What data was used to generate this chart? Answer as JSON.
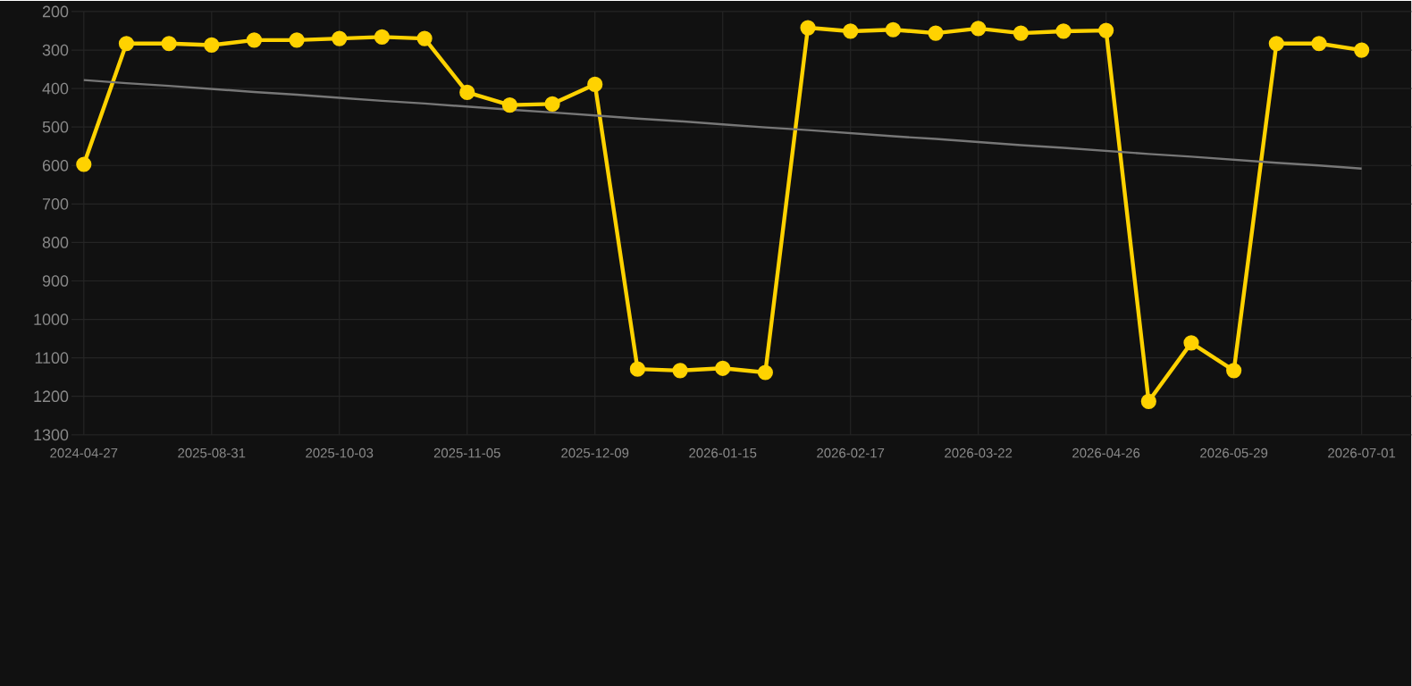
{
  "chart_data": {
    "type": "line",
    "categories": [
      "2024-04-27",
      null,
      null,
      "2025-08-31",
      null,
      null,
      "2025-10-03",
      null,
      null,
      "2025-11-05",
      null,
      null,
      "2025-12-09",
      null,
      null,
      "2026-01-15",
      null,
      null,
      "2026-02-17",
      null,
      null,
      "2026-03-22",
      null,
      null,
      "2026-04-26",
      null,
      null,
      "2026-05-29",
      null,
      null,
      "2026-07-01"
    ],
    "series": [
      {
        "color": "#ffd200",
        "marker": "circle",
        "line_style": "solid",
        "values": [
          597,
          283,
          283,
          287,
          274,
          274,
          270,
          266,
          270,
          410,
          443,
          440,
          389,
          1129,
          1133,
          1127,
          1138,
          242,
          251,
          247,
          256,
          244,
          256,
          251,
          249,
          1213,
          1061,
          1133,
          283,
          283,
          300
        ]
      },
      {
        "color": "#777777",
        "marker": "none",
        "line_style": "solid",
        "values": [
          378,
          386,
          393,
          401,
          409,
          416,
          424,
          432,
          439,
          447,
          455,
          462,
          470,
          478,
          485,
          493,
          501,
          508,
          516,
          524,
          531,
          539,
          547,
          554,
          562,
          570,
          577,
          585,
          593,
          600,
          608
        ]
      }
    ],
    "ylim": [
      1300,
      200
    ],
    "yticks": [
      200,
      300,
      400,
      500,
      600,
      700,
      800,
      900,
      1000,
      1100,
      1200,
      1300
    ],
    "grid": true,
    "legend": false
  }
}
